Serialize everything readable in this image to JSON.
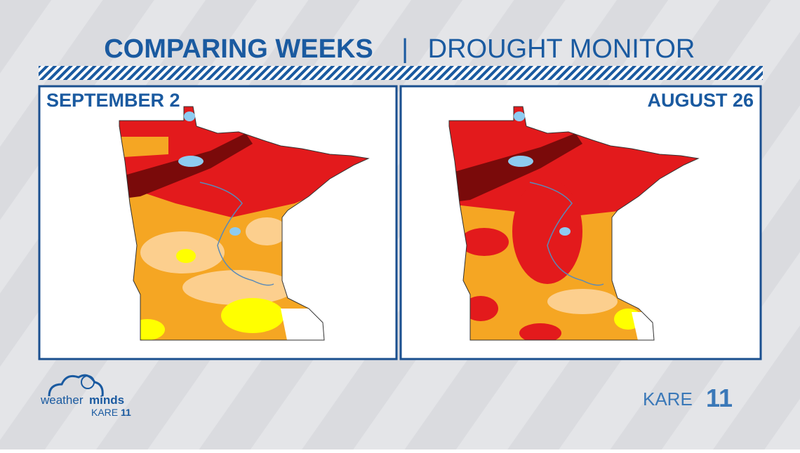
{
  "header": {
    "title_bold": "COMPARING WEEKS",
    "separator": "|",
    "title_light": "DROUGHT MONITOR"
  },
  "panels": [
    {
      "label": "SEPTEMBER 2"
    },
    {
      "label": "AUGUST 26"
    }
  ],
  "footer": {
    "brand_left": {
      "word1": "weather",
      "word2": "minds",
      "station": "KARE",
      "number": "11"
    },
    "brand_right": {
      "station": "KARE",
      "number": "11"
    }
  }
}
